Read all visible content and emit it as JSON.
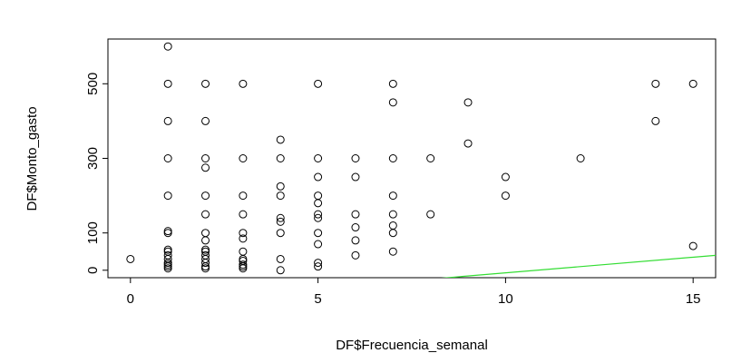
{
  "chart_data": {
    "type": "scatter",
    "title": "",
    "xlabel": "DF$Frecuencia_semanal",
    "ylabel": "DF$Monto_gasto",
    "xlim": [
      -0.6,
      15.6
    ],
    "ylim": [
      -20,
      620
    ],
    "xticks": [
      0,
      5,
      10,
      15
    ],
    "xtick_labels": [
      "0",
      "5",
      "10",
      "15"
    ],
    "yticks": [
      0,
      100,
      300,
      500
    ],
    "ytick_labels": [
      "0",
      "100",
      "300",
      "500"
    ],
    "grid": false,
    "legend": "none",
    "point_color": "#000000",
    "line_color": "#33dd33",
    "points": [
      {
        "x": 0,
        "y": 30
      },
      {
        "x": 1,
        "y": 600
      },
      {
        "x": 1,
        "y": 500
      },
      {
        "x": 1,
        "y": 400
      },
      {
        "x": 1,
        "y": 300
      },
      {
        "x": 1,
        "y": 200
      },
      {
        "x": 1,
        "y": 105
      },
      {
        "x": 1,
        "y": 100
      },
      {
        "x": 1,
        "y": 55
      },
      {
        "x": 1,
        "y": 50
      },
      {
        "x": 1,
        "y": 40
      },
      {
        "x": 1,
        "y": 30
      },
      {
        "x": 1,
        "y": 20
      },
      {
        "x": 1,
        "y": 15
      },
      {
        "x": 1,
        "y": 10
      },
      {
        "x": 1,
        "y": 5
      },
      {
        "x": 2,
        "y": 500
      },
      {
        "x": 2,
        "y": 400
      },
      {
        "x": 2,
        "y": 300
      },
      {
        "x": 2,
        "y": 275
      },
      {
        "x": 2,
        "y": 200
      },
      {
        "x": 2,
        "y": 150
      },
      {
        "x": 2,
        "y": 100
      },
      {
        "x": 2,
        "y": 80
      },
      {
        "x": 2,
        "y": 55
      },
      {
        "x": 2,
        "y": 50
      },
      {
        "x": 2,
        "y": 40
      },
      {
        "x": 2,
        "y": 30
      },
      {
        "x": 2,
        "y": 20
      },
      {
        "x": 2,
        "y": 10
      },
      {
        "x": 2,
        "y": 5
      },
      {
        "x": 3,
        "y": 500
      },
      {
        "x": 3,
        "y": 300
      },
      {
        "x": 3,
        "y": 200
      },
      {
        "x": 3,
        "y": 150
      },
      {
        "x": 3,
        "y": 100
      },
      {
        "x": 3,
        "y": 85
      },
      {
        "x": 3,
        "y": 50
      },
      {
        "x": 3,
        "y": 30
      },
      {
        "x": 3,
        "y": 25
      },
      {
        "x": 3,
        "y": 15
      },
      {
        "x": 3,
        "y": 10
      },
      {
        "x": 3,
        "y": 5
      },
      {
        "x": 4,
        "y": 350
      },
      {
        "x": 4,
        "y": 300
      },
      {
        "x": 4,
        "y": 225
      },
      {
        "x": 4,
        "y": 200
      },
      {
        "x": 4,
        "y": 140
      },
      {
        "x": 4,
        "y": 130
      },
      {
        "x": 4,
        "y": 100
      },
      {
        "x": 4,
        "y": 30
      },
      {
        "x": 4,
        "y": 0
      },
      {
        "x": 5,
        "y": 500
      },
      {
        "x": 5,
        "y": 300
      },
      {
        "x": 5,
        "y": 250
      },
      {
        "x": 5,
        "y": 200
      },
      {
        "x": 5,
        "y": 180
      },
      {
        "x": 5,
        "y": 150
      },
      {
        "x": 5,
        "y": 140
      },
      {
        "x": 5,
        "y": 100
      },
      {
        "x": 5,
        "y": 70
      },
      {
        "x": 5,
        "y": 20
      },
      {
        "x": 5,
        "y": 10
      },
      {
        "x": 6,
        "y": 300
      },
      {
        "x": 6,
        "y": 250
      },
      {
        "x": 6,
        "y": 150
      },
      {
        "x": 6,
        "y": 115
      },
      {
        "x": 6,
        "y": 80
      },
      {
        "x": 6,
        "y": 40
      },
      {
        "x": 7,
        "y": 500
      },
      {
        "x": 7,
        "y": 450
      },
      {
        "x": 7,
        "y": 300
      },
      {
        "x": 7,
        "y": 200
      },
      {
        "x": 7,
        "y": 150
      },
      {
        "x": 7,
        "y": 120
      },
      {
        "x": 7,
        "y": 100
      },
      {
        "x": 7,
        "y": 50
      },
      {
        "x": 8,
        "y": 300
      },
      {
        "x": 8,
        "y": 150
      },
      {
        "x": 9,
        "y": 450
      },
      {
        "x": 9,
        "y": 340
      },
      {
        "x": 10,
        "y": 250
      },
      {
        "x": 10,
        "y": 200
      },
      {
        "x": 12,
        "y": 300
      },
      {
        "x": 14,
        "y": 500
      },
      {
        "x": 14,
        "y": 400
      },
      {
        "x": 15,
        "y": 500
      },
      {
        "x": 15,
        "y": 65
      }
    ],
    "line": {
      "x": [
        7.5,
        15.6
      ],
      "y": [
        -28,
        40
      ]
    }
  }
}
